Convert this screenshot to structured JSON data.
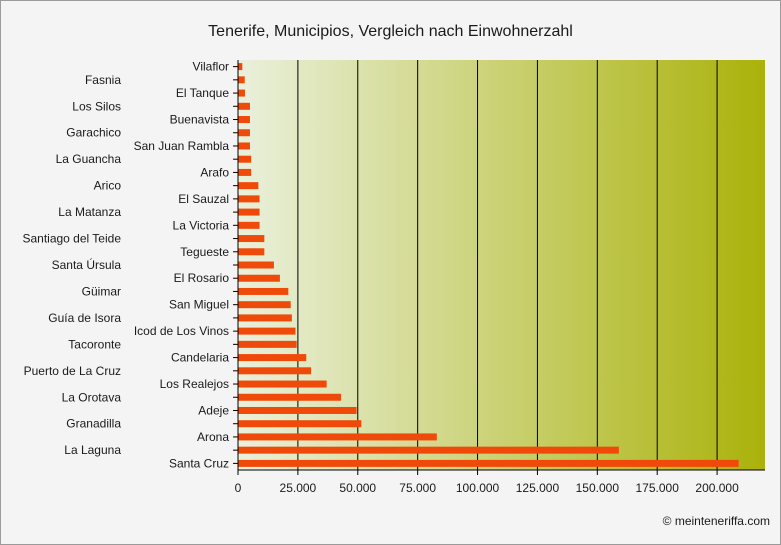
{
  "chart_data": {
    "type": "bar",
    "orientation": "horizontal",
    "title": "Tenerife, Municipios, Vergleich nach Einwohnerzahl",
    "xlabel": "",
    "ylabel": "",
    "xlim": [
      0,
      220000
    ],
    "xticks": [
      0,
      25000,
      50000,
      75000,
      100000,
      125000,
      150000,
      175000,
      200000
    ],
    "xtick_labels": [
      "0",
      "25.000",
      "50.000",
      "75.000",
      "100.000",
      "125.000",
      "150.000",
      "175.000",
      "200.000"
    ],
    "grid": "vertical",
    "bar_color": "#f04a0a",
    "background_gradient": [
      "#eaf0dc",
      "#aab20a"
    ],
    "categories": [
      "Vilaflor",
      "Fasnia",
      "El Tanque",
      "Los Silos",
      "Buenavista",
      "Garachico",
      "San Juan Rambla",
      "La Guancha",
      "Arafo",
      "Arico",
      "El Sauzal",
      "La Matanza",
      "La Victoria",
      "Santiago del Teide",
      "Tegueste",
      "Santa Úrsula",
      "El Rosario",
      "Güimar",
      "San Miguel",
      "Guía de Isora",
      "Icod de Los Vinos",
      "Tacoronte",
      "Candelaria",
      "Puerto de La Cruz",
      "Los Realejos",
      "La Orotava",
      "Adeje",
      "Granadilla",
      "Arona",
      "La Laguna",
      "Santa Cruz"
    ],
    "values": [
      1800,
      2800,
      2900,
      5000,
      5000,
      5000,
      5000,
      5500,
      5500,
      8500,
      9000,
      9000,
      9000,
      11000,
      11000,
      15000,
      17500,
      21000,
      22000,
      22500,
      24000,
      24500,
      28500,
      30500,
      37000,
      43000,
      49500,
      51500,
      83000,
      159000,
      209000
    ]
  },
  "credit": "© meinteneriffa.com"
}
